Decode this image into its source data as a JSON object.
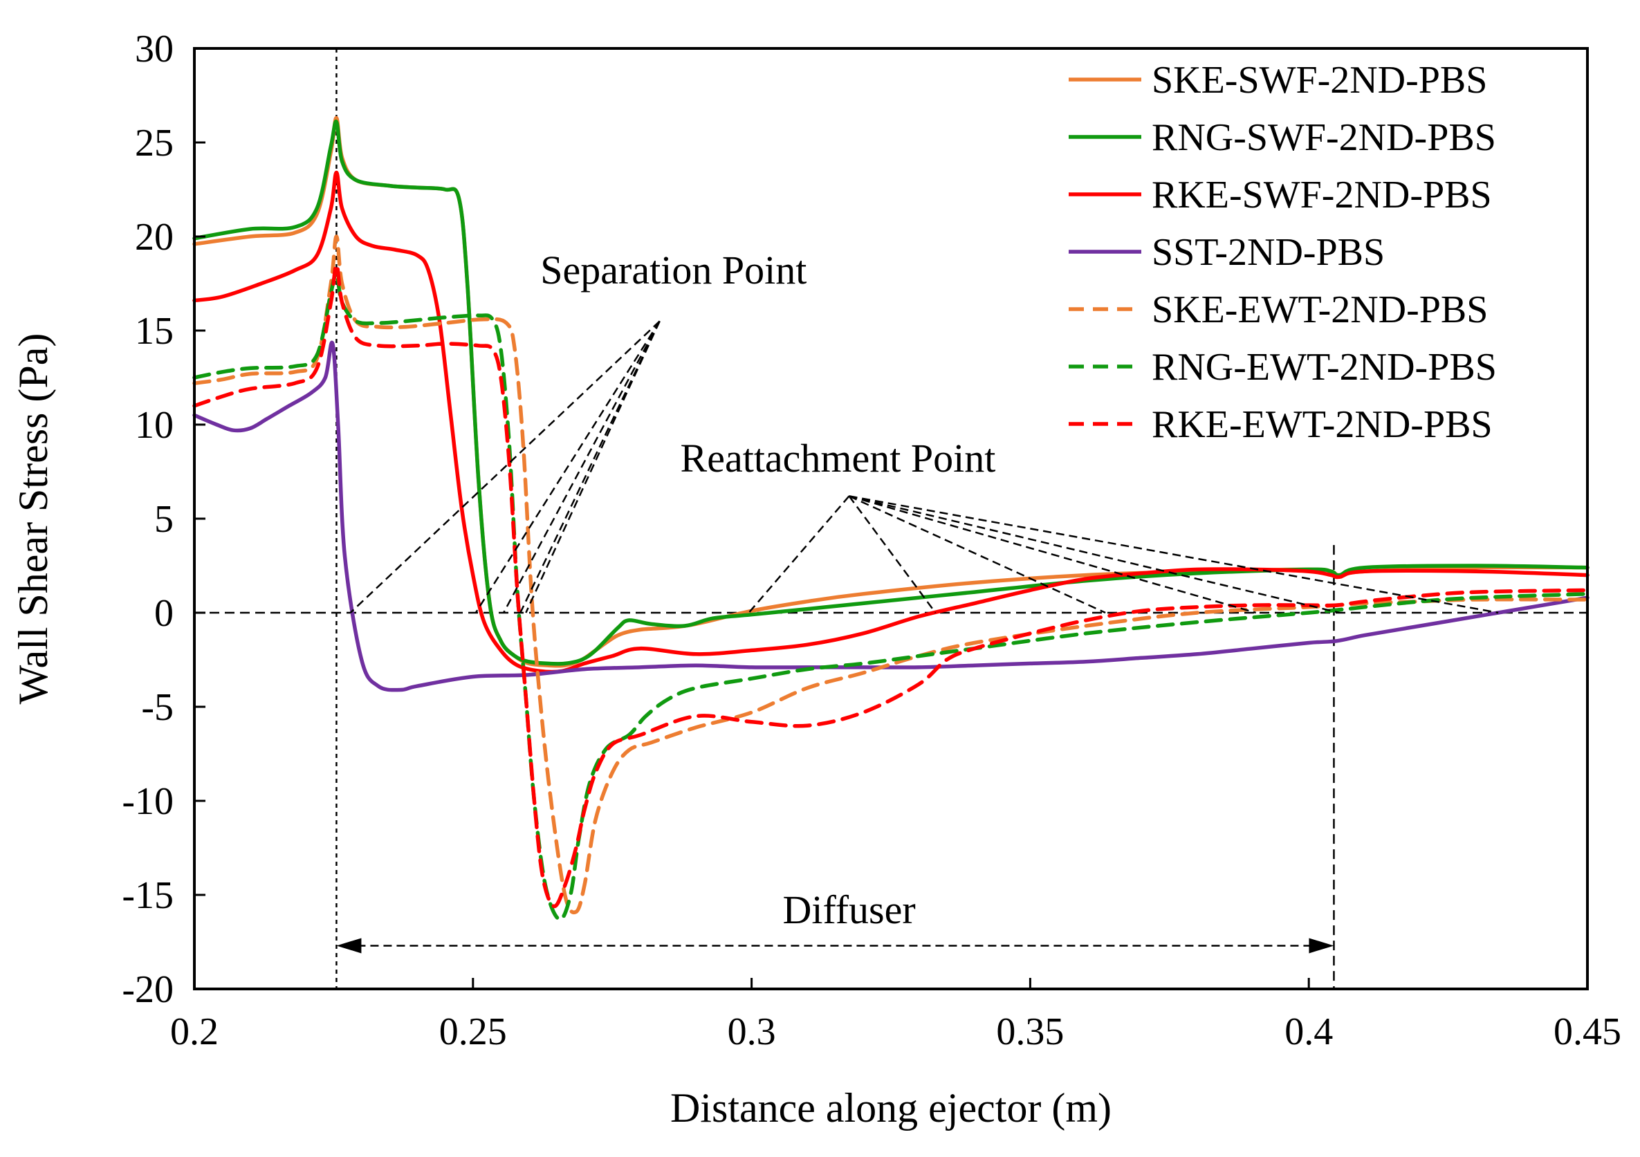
{
  "chart_data": {
    "type": "line",
    "title": "",
    "xlabel": "Distance along ejector (m)",
    "ylabel": "Wall Shear Stress (Pa)",
    "xlim": [
      0.2,
      0.45
    ],
    "ylim": [
      -20,
      30
    ],
    "x_ticks": [
      0.2,
      0.25,
      0.3,
      0.35,
      0.4,
      0.45
    ],
    "x_tick_labels": [
      "0.2",
      "0.25",
      "0.3",
      "0.35",
      "0.4",
      "0.45"
    ],
    "y_ticks": [
      -20,
      -15,
      -10,
      -5,
      0,
      5,
      10,
      15,
      20,
      25,
      30
    ],
    "y_tick_labels": [
      "-20",
      "-15",
      "-10",
      "-5",
      "0",
      "5",
      "10",
      "15",
      "20",
      "25",
      "30"
    ],
    "grid": false,
    "legend_position": "top-right",
    "reference_lines": {
      "zero_line_y": 0,
      "diffuser_start_x": 0.2255,
      "diffuser_end_x": 0.4045
    },
    "annotations": {
      "separation": {
        "label": "Separation Point",
        "label_x": 0.286,
        "label_y": 17.5,
        "anchor_x": 0.2835,
        "anchor_y": 15.5,
        "targets_x": [
          0.228,
          0.2505,
          0.2555,
          0.2585,
          0.2595
        ]
      },
      "reattachment": {
        "label": "Reattachment Point",
        "label_x": 0.3155,
        "label_y": 7.5,
        "anchor_x": 0.3175,
        "anchor_y": 6.2,
        "targets_x": [
          0.2995,
          0.333,
          0.3635,
          0.3905,
          0.4055,
          0.434
        ]
      },
      "diffuser": {
        "label": "Diffuser",
        "label_x": 0.3175,
        "label_y": -16.5,
        "arrow_y": -17.7,
        "x_start": 0.2255,
        "x_end": 0.4045
      }
    },
    "series": [
      {
        "name": "SKE-SWF-2ND-PBS",
        "color": "#ED7D31",
        "dash": false,
        "x": [
          0.2,
          0.21,
          0.218,
          0.222,
          0.2245,
          0.2255,
          0.2265,
          0.229,
          0.235,
          0.24,
          0.245,
          0.2475,
          0.249,
          0.251,
          0.253,
          0.255,
          0.2575,
          0.26,
          0.2635,
          0.2665,
          0.2695,
          0.272,
          0.276,
          0.28,
          0.285,
          0.29,
          0.3,
          0.31,
          0.32,
          0.34,
          0.36,
          0.38,
          0.4,
          0.404,
          0.4055,
          0.41,
          0.43,
          0.45
        ],
        "values": [
          19.6,
          20.0,
          20.2,
          21.2,
          24.5,
          26.3,
          24.2,
          23.0,
          22.7,
          22.6,
          22.5,
          22.0,
          17.5,
          7.0,
          0.5,
          -1.5,
          -2.3,
          -2.7,
          -2.8,
          -2.8,
          -2.5,
          -2.0,
          -1.2,
          -0.9,
          -0.8,
          -0.6,
          0.1,
          0.6,
          1.0,
          1.6,
          2.0,
          2.2,
          2.3,
          2.2,
          2.0,
          2.2,
          2.4,
          2.4
        ]
      },
      {
        "name": "RNG-SWF-2ND-PBS",
        "color": "#109A10",
        "dash": false,
        "x": [
          0.2,
          0.21,
          0.218,
          0.222,
          0.2245,
          0.2255,
          0.2265,
          0.229,
          0.235,
          0.24,
          0.245,
          0.2475,
          0.249,
          0.251,
          0.253,
          0.255,
          0.2575,
          0.26,
          0.2635,
          0.2665,
          0.2695,
          0.272,
          0.276,
          0.278,
          0.282,
          0.288,
          0.293,
          0.3,
          0.31,
          0.32,
          0.34,
          0.36,
          0.38,
          0.4,
          0.404,
          0.4055,
          0.41,
          0.43,
          0.45
        ],
        "values": [
          19.9,
          20.4,
          20.5,
          21.5,
          24.8,
          26.1,
          24.0,
          23.0,
          22.7,
          22.6,
          22.5,
          22.0,
          17.5,
          7.0,
          0.5,
          -1.5,
          -2.3,
          -2.6,
          -2.7,
          -2.7,
          -2.5,
          -2.0,
          -0.8,
          -0.4,
          -0.6,
          -0.7,
          -0.3,
          -0.1,
          0.2,
          0.5,
          1.1,
          1.7,
          2.1,
          2.3,
          2.2,
          2.0,
          2.4,
          2.5,
          2.4
        ]
      },
      {
        "name": "RKE-SWF-2ND-PBS",
        "color": "#FF0000",
        "dash": false,
        "x": [
          0.2,
          0.205,
          0.212,
          0.218,
          0.222,
          0.2245,
          0.2255,
          0.2265,
          0.229,
          0.232,
          0.236,
          0.24,
          0.242,
          0.244,
          0.246,
          0.248,
          0.25,
          0.252,
          0.255,
          0.258,
          0.262,
          0.266,
          0.27,
          0.275,
          0.28,
          0.29,
          0.3,
          0.31,
          0.32,
          0.33,
          0.34,
          0.35,
          0.36,
          0.37,
          0.38,
          0.39,
          0.4,
          0.404,
          0.4055,
          0.41,
          0.43,
          0.45
        ],
        "values": [
          16.6,
          16.8,
          17.5,
          18.2,
          19.0,
          21.5,
          23.4,
          21.5,
          20.0,
          19.5,
          19.3,
          19.0,
          18.2,
          15.5,
          10.5,
          5.5,
          2.0,
          -0.5,
          -2.0,
          -2.8,
          -3.1,
          -3.1,
          -2.7,
          -2.3,
          -1.9,
          -2.2,
          -2.0,
          -1.7,
          -1.1,
          -0.2,
          0.5,
          1.2,
          1.8,
          2.1,
          2.3,
          2.3,
          2.2,
          2.0,
          1.9,
          2.2,
          2.2,
          2.0
        ]
      },
      {
        "name": "SST-2ND-PBS",
        "color": "#7030A0",
        "dash": false,
        "x": [
          0.2,
          0.204,
          0.207,
          0.21,
          0.213,
          0.217,
          0.221,
          0.2235,
          0.2248,
          0.2258,
          0.227,
          0.23,
          0.233,
          0.237,
          0.24,
          0.25,
          0.26,
          0.27,
          0.28,
          0.29,
          0.3,
          0.31,
          0.32,
          0.33,
          0.34,
          0.35,
          0.36,
          0.37,
          0.38,
          0.39,
          0.4,
          0.405,
          0.41,
          0.42,
          0.43,
          0.44,
          0.45
        ],
        "values": [
          10.5,
          10.0,
          9.7,
          9.8,
          10.3,
          11.0,
          11.7,
          12.5,
          14.3,
          10.0,
          3.0,
          -2.5,
          -3.9,
          -4.1,
          -3.9,
          -3.4,
          -3.3,
          -3.0,
          -2.9,
          -2.8,
          -2.9,
          -2.9,
          -2.9,
          -2.9,
          -2.8,
          -2.7,
          -2.6,
          -2.4,
          -2.2,
          -1.9,
          -1.6,
          -1.5,
          -1.2,
          -0.7,
          -0.2,
          0.3,
          0.8
        ]
      },
      {
        "name": "SKE-EWT-2ND-PBS",
        "color": "#ED7D31",
        "dash": true,
        "x": [
          0.2,
          0.205,
          0.21,
          0.218,
          0.222,
          0.2245,
          0.2255,
          0.2265,
          0.229,
          0.233,
          0.238,
          0.245,
          0.252,
          0.256,
          0.2575,
          0.259,
          0.2605,
          0.262,
          0.264,
          0.2665,
          0.2685,
          0.27,
          0.272,
          0.275,
          0.278,
          0.282,
          0.29,
          0.3,
          0.31,
          0.32,
          0.33,
          0.34,
          0.36,
          0.38,
          0.4,
          0.41,
          0.42,
          0.43,
          0.45
        ],
        "values": [
          12.2,
          12.4,
          12.7,
          12.8,
          13.5,
          17.5,
          20.0,
          17.5,
          15.5,
          15.2,
          15.2,
          15.4,
          15.6,
          15.4,
          14.0,
          9.0,
          1.0,
          -4.5,
          -10.0,
          -15.0,
          -15.9,
          -14.5,
          -11.0,
          -8.5,
          -7.3,
          -6.9,
          -6.1,
          -5.3,
          -4.0,
          -3.2,
          -2.3,
          -1.6,
          -0.7,
          0.0,
          0.3,
          0.5,
          0.6,
          0.7,
          0.7
        ]
      },
      {
        "name": "RNG-EWT-2ND-PBS",
        "color": "#109A10",
        "dash": true,
        "x": [
          0.2,
          0.205,
          0.21,
          0.218,
          0.222,
          0.2245,
          0.2255,
          0.2265,
          0.229,
          0.233,
          0.238,
          0.245,
          0.251,
          0.2535,
          0.255,
          0.2565,
          0.258,
          0.2595,
          0.261,
          0.263,
          0.2655,
          0.2675,
          0.269,
          0.271,
          0.274,
          0.278,
          0.281,
          0.285,
          0.29,
          0.3,
          0.31,
          0.32,
          0.33,
          0.34,
          0.36,
          0.38,
          0.4,
          0.41,
          0.42,
          0.43,
          0.45
        ],
        "values": [
          12.5,
          12.8,
          13.0,
          13.1,
          13.7,
          17.0,
          18.0,
          16.5,
          15.5,
          15.4,
          15.5,
          15.7,
          15.8,
          15.6,
          14.0,
          9.0,
          1.0,
          -4.5,
          -10.0,
          -14.5,
          -16.3,
          -15.0,
          -12.0,
          -9.0,
          -7.2,
          -6.5,
          -5.5,
          -4.6,
          -4.0,
          -3.5,
          -3.0,
          -2.7,
          -2.3,
          -1.9,
          -1.1,
          -0.5,
          0.0,
          0.3,
          0.6,
          0.8,
          1.0
        ]
      },
      {
        "name": "RKE-EWT-2ND-PBS",
        "color": "#FF0000",
        "dash": true,
        "x": [
          0.2,
          0.205,
          0.21,
          0.218,
          0.222,
          0.2245,
          0.2255,
          0.2265,
          0.229,
          0.233,
          0.24,
          0.245,
          0.251,
          0.2535,
          0.255,
          0.2565,
          0.258,
          0.2595,
          0.261,
          0.2625,
          0.2645,
          0.2665,
          0.2685,
          0.27,
          0.272,
          0.275,
          0.28,
          0.29,
          0.3,
          0.31,
          0.32,
          0.33,
          0.335,
          0.34,
          0.35,
          0.36,
          0.37,
          0.38,
          0.39,
          0.4,
          0.405,
          0.41,
          0.42,
          0.43,
          0.45
        ],
        "values": [
          11.0,
          11.5,
          11.9,
          12.2,
          13.0,
          16.5,
          18.5,
          16.5,
          14.6,
          14.2,
          14.2,
          14.3,
          14.2,
          14.0,
          12.5,
          8.0,
          1.0,
          -4.5,
          -10.0,
          -14.0,
          -15.6,
          -14.5,
          -12.5,
          -10.5,
          -8.5,
          -7.0,
          -6.5,
          -5.5,
          -5.8,
          -6.0,
          -5.3,
          -3.8,
          -2.5,
          -1.9,
          -1.1,
          -0.4,
          0.1,
          0.3,
          0.4,
          0.4,
          0.4,
          0.6,
          0.9,
          1.1,
          1.2
        ]
      }
    ]
  }
}
